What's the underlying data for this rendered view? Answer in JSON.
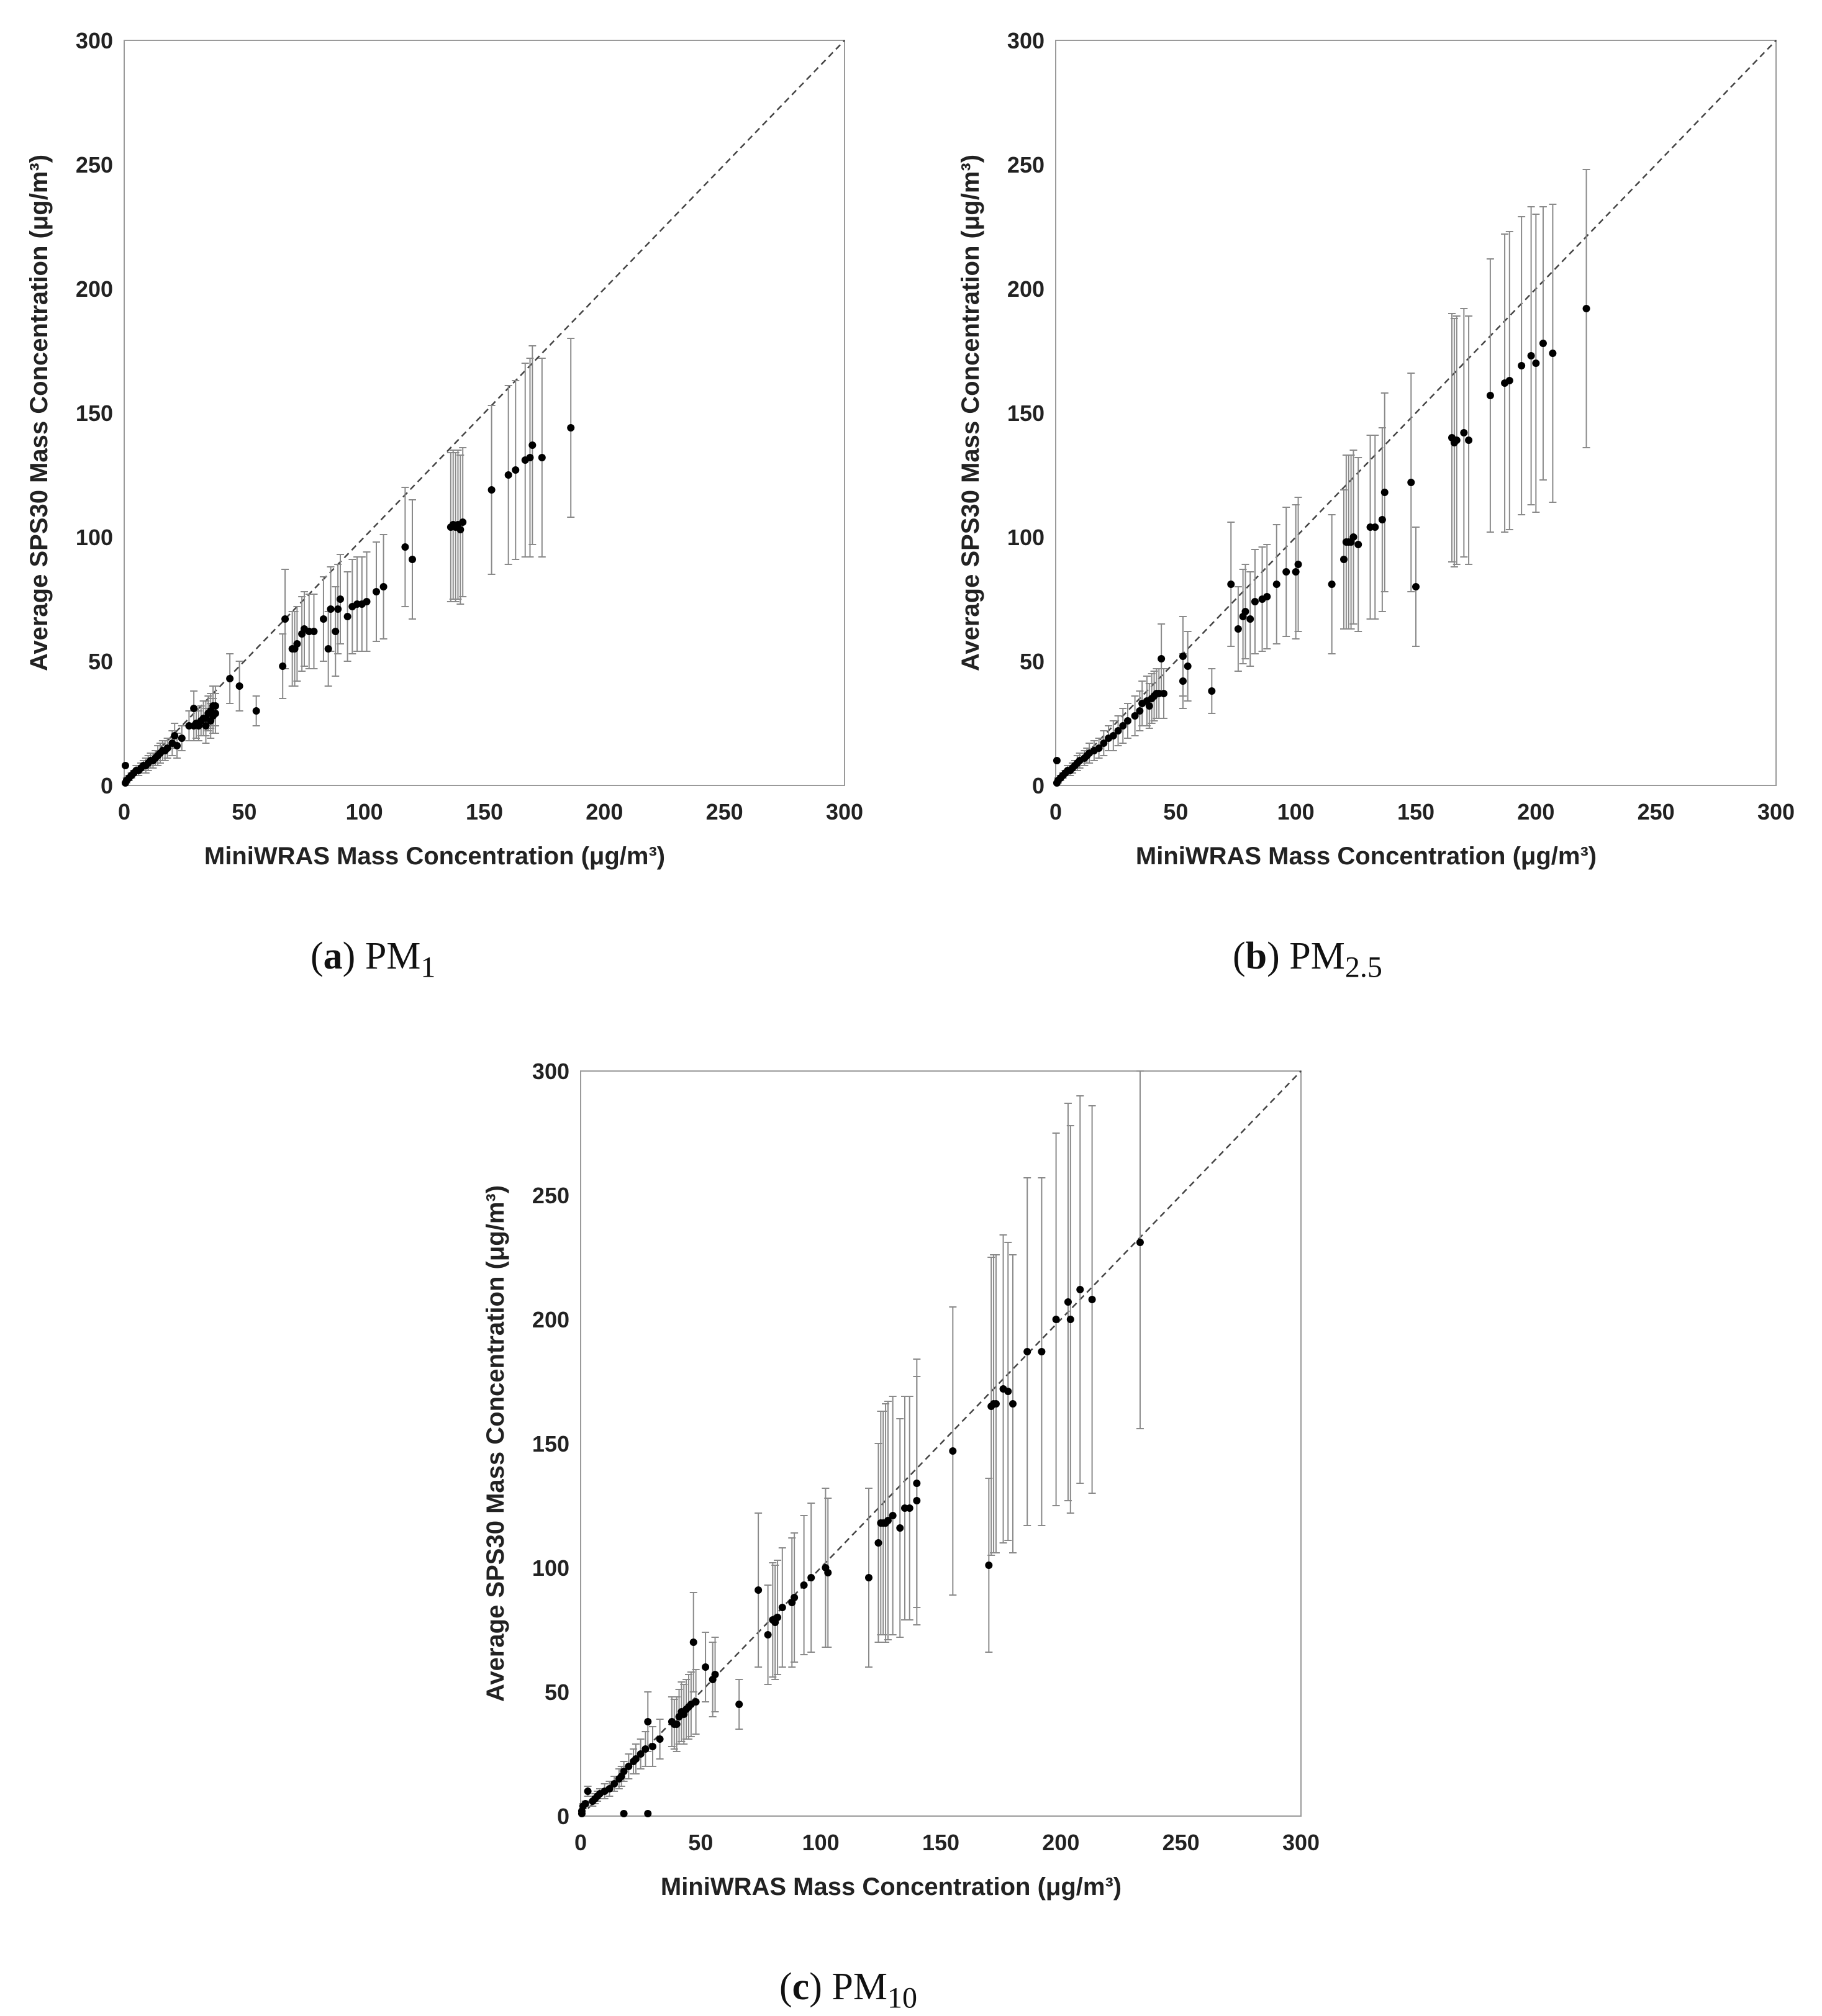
{
  "charts": [
    {
      "id": "a",
      "caption_letter": "a",
      "caption_text": "PM",
      "caption_sub": "1",
      "chart_data": {
        "type": "scatter",
        "title": "",
        "xlabel": "MiniWRAS Mass Concentration (μg/m³)",
        "ylabel": "Average SPS30 Mass Concentration (μg/m³)",
        "xlim": [
          0,
          300
        ],
        "ylim": [
          0,
          300
        ],
        "xticks": [
          "0",
          "50",
          "100",
          "150",
          "200",
          "250",
          "300"
        ],
        "yticks": [
          "0",
          "50",
          "100",
          "150",
          "200",
          "250",
          "300"
        ],
        "reference_line": "1:1 (dashed)",
        "points": [
          [
            0.5,
            1,
            0
          ],
          [
            0.5,
            8,
            0
          ],
          [
            1,
            2,
            1
          ],
          [
            2,
            3,
            1
          ],
          [
            3,
            4,
            1
          ],
          [
            4,
            5,
            1
          ],
          [
            5,
            6,
            2
          ],
          [
            6,
            6,
            2
          ],
          [
            7,
            7,
            2
          ],
          [
            8,
            8,
            2
          ],
          [
            9,
            8,
            3
          ],
          [
            10,
            9,
            3
          ],
          [
            11,
            10,
            3
          ],
          [
            12,
            10,
            3
          ],
          [
            13,
            11,
            3
          ],
          [
            14,
            12,
            4
          ],
          [
            15,
            13,
            4
          ],
          [
            16,
            14,
            4
          ],
          [
            17,
            14,
            4
          ],
          [
            18,
            15,
            4
          ],
          [
            20,
            17,
            5
          ],
          [
            21,
            20,
            5
          ],
          [
            22,
            16,
            5
          ],
          [
            24,
            19,
            5
          ],
          [
            27,
            24,
            6
          ],
          [
            29,
            24,
            6
          ],
          [
            29,
            31,
            7
          ],
          [
            30,
            25,
            6
          ],
          [
            31,
            24,
            6
          ],
          [
            32,
            26,
            6
          ],
          [
            33,
            27,
            7
          ],
          [
            34,
            27,
            7
          ],
          [
            34,
            24,
            7
          ],
          [
            35,
            29,
            7
          ],
          [
            36,
            26,
            7
          ],
          [
            36,
            30,
            7
          ],
          [
            37,
            28,
            7
          ],
          [
            37,
            32,
            8
          ],
          [
            38,
            29,
            8
          ],
          [
            38,
            32,
            8
          ],
          [
            44,
            43,
            10
          ],
          [
            48,
            40,
            10
          ],
          [
            55,
            30,
            6
          ],
          [
            66,
            48,
            13
          ],
          [
            67,
            67,
            20
          ],
          [
            70,
            55,
            15
          ],
          [
            71,
            55,
            15
          ],
          [
            72,
            57,
            15
          ],
          [
            74,
            61,
            15
          ],
          [
            75,
            63,
            15
          ],
          [
            77,
            62,
            15
          ],
          [
            79,
            62,
            15
          ],
          [
            83,
            67,
            17
          ],
          [
            85,
            55,
            15
          ],
          [
            86,
            71,
            17
          ],
          [
            88,
            62,
            18
          ],
          [
            89,
            71,
            18
          ],
          [
            90,
            75,
            18
          ],
          [
            93,
            68,
            18
          ],
          [
            95,
            72,
            19
          ],
          [
            97,
            73,
            19
          ],
          [
            99,
            73,
            19
          ],
          [
            101,
            74,
            20
          ],
          [
            105,
            78,
            20
          ],
          [
            108,
            80,
            21
          ],
          [
            117,
            96,
            24
          ],
          [
            120,
            91,
            24
          ],
          [
            136,
            104,
            30
          ],
          [
            137,
            105,
            30
          ],
          [
            138,
            104,
            30
          ],
          [
            139,
            105,
            30
          ],
          [
            140,
            103,
            30
          ],
          [
            141,
            106,
            30
          ],
          [
            153,
            119,
            34
          ],
          [
            160,
            125,
            36
          ],
          [
            163,
            127,
            36
          ],
          [
            167,
            131,
            39
          ],
          [
            169,
            132,
            40
          ],
          [
            170,
            137,
            40
          ],
          [
            174,
            132,
            40
          ],
          [
            186,
            144,
            36
          ]
        ]
      }
    },
    {
      "id": "b",
      "caption_letter": "b",
      "caption_text": "PM",
      "caption_sub": "2.5",
      "chart_data": {
        "type": "scatter",
        "title": "",
        "xlabel": "MiniWRAS Mass Concentration (μg/m³)",
        "ylabel": "Average SPS30 Mass Concentration (μg/m³)",
        "xlim": [
          0,
          300
        ],
        "ylim": [
          0,
          300
        ],
        "xticks": [
          "0",
          "50",
          "100",
          "150",
          "200",
          "250",
          "300"
        ],
        "yticks": [
          "0",
          "50",
          "100",
          "150",
          "200",
          "250",
          "300"
        ],
        "reference_line": "1:1 (dashed)",
        "points": [
          [
            0.5,
            1,
            0
          ],
          [
            0.5,
            10,
            0
          ],
          [
            1,
            2,
            1
          ],
          [
            2,
            3,
            1
          ],
          [
            3,
            4,
            1
          ],
          [
            4,
            5,
            1
          ],
          [
            5,
            6,
            2
          ],
          [
            6,
            6,
            2
          ],
          [
            7,
            7,
            2
          ],
          [
            8,
            8,
            2
          ],
          [
            9,
            9,
            3
          ],
          [
            10,
            10,
            3
          ],
          [
            12,
            11,
            3
          ],
          [
            13,
            12,
            3
          ],
          [
            14,
            13,
            4
          ],
          [
            16,
            14,
            4
          ],
          [
            18,
            15,
            4
          ],
          [
            20,
            17,
            5
          ],
          [
            22,
            19,
            5
          ],
          [
            24,
            20,
            6
          ],
          [
            26,
            22,
            6
          ],
          [
            28,
            24,
            7
          ],
          [
            30,
            26,
            7
          ],
          [
            33,
            28,
            8
          ],
          [
            35,
            30,
            8
          ],
          [
            36,
            33,
            9
          ],
          [
            38,
            34,
            10
          ],
          [
            39,
            32,
            9
          ],
          [
            40,
            35,
            10
          ],
          [
            41,
            36,
            10
          ],
          [
            42,
            37,
            10
          ],
          [
            43,
            37,
            10
          ],
          [
            44,
            51,
            14
          ],
          [
            45,
            37,
            10
          ],
          [
            53,
            42,
            11
          ],
          [
            53,
            52,
            16
          ],
          [
            55,
            48,
            14
          ],
          [
            65,
            38,
            9
          ],
          [
            73,
            81,
            25
          ],
          [
            76,
            63,
            17
          ],
          [
            78,
            68,
            19
          ],
          [
            79,
            70,
            19
          ],
          [
            81,
            67,
            19
          ],
          [
            83,
            74,
            21
          ],
          [
            86,
            75,
            21
          ],
          [
            88,
            76,
            21
          ],
          [
            92,
            81,
            24
          ],
          [
            96,
            86,
            26
          ],
          [
            100,
            86,
            27
          ],
          [
            101,
            89,
            27
          ],
          [
            115,
            81,
            28
          ],
          [
            120,
            91,
            28
          ],
          [
            121,
            98,
            35
          ],
          [
            122,
            98,
            35
          ],
          [
            123,
            98,
            35
          ],
          [
            124,
            100,
            35
          ],
          [
            126,
            97,
            35
          ],
          [
            131,
            104,
            37
          ],
          [
            133,
            104,
            37
          ],
          [
            136,
            107,
            37
          ],
          [
            137,
            118,
            40
          ],
          [
            148,
            122,
            44
          ],
          [
            150,
            80,
            24
          ],
          [
            165,
            140,
            50
          ],
          [
            166,
            138,
            50
          ],
          [
            167,
            139,
            50
          ],
          [
            170,
            142,
            50
          ],
          [
            172,
            139,
            50
          ],
          [
            181,
            157,
            55
          ],
          [
            187,
            162,
            60
          ],
          [
            189,
            163,
            60
          ],
          [
            194,
            169,
            60
          ],
          [
            198,
            173,
            60
          ],
          [
            200,
            170,
            60
          ],
          [
            203,
            178,
            55
          ],
          [
            207,
            174,
            60
          ],
          [
            221,
            192,
            56
          ]
        ]
      }
    },
    {
      "id": "c",
      "caption_letter": "c",
      "caption_text": "PM",
      "caption_sub": "10",
      "chart_data": {
        "type": "scatter",
        "title": "",
        "xlabel": "MiniWRAS Mass Concentration (μg/m³)",
        "ylabel": "Average SPS30 Mass Concentration (μg/m³)",
        "xlim": [
          0,
          300
        ],
        "ylim": [
          0,
          300
        ],
        "xticks": [
          "0",
          "50",
          "100",
          "150",
          "200",
          "250",
          "300"
        ],
        "yticks": [
          "0",
          "50",
          "100",
          "150",
          "200",
          "250",
          "300"
        ],
        "reference_line": "1:1 (dashed)",
        "points": [
          [
            0.5,
            1,
            0
          ],
          [
            0.5,
            2,
            0
          ],
          [
            1,
            4,
            1
          ],
          [
            2,
            5,
            1
          ],
          [
            3,
            10,
            2
          ],
          [
            5,
            6,
            2
          ],
          [
            6,
            7,
            2
          ],
          [
            7,
            8,
            2
          ],
          [
            8,
            9,
            2
          ],
          [
            10,
            10,
            3
          ],
          [
            12,
            11,
            3
          ],
          [
            14,
            13,
            3
          ],
          [
            16,
            15,
            4
          ],
          [
            17,
            16,
            4
          ],
          [
            18,
            18,
            4
          ],
          [
            20,
            20,
            5
          ],
          [
            22,
            22,
            5
          ],
          [
            23,
            23,
            6
          ],
          [
            25,
            25,
            6
          ],
          [
            27,
            27,
            7
          ],
          [
            28,
            38,
            12
          ],
          [
            30,
            28,
            8
          ],
          [
            33,
            31,
            8
          ],
          [
            38,
            38,
            10
          ],
          [
            39,
            37,
            10
          ],
          [
            40,
            37,
            11
          ],
          [
            41,
            40,
            11
          ],
          [
            42,
            42,
            12
          ],
          [
            43,
            41,
            12
          ],
          [
            44,
            43,
            12
          ],
          [
            45,
            44,
            13
          ],
          [
            46,
            45,
            13
          ],
          [
            47,
            70,
            20
          ],
          [
            48,
            46,
            13
          ],
          [
            52,
            60,
            14
          ],
          [
            55,
            55,
            15
          ],
          [
            56,
            57,
            15
          ],
          [
            66,
            45,
            10
          ],
          [
            18,
            1,
            0
          ],
          [
            28,
            1,
            0
          ],
          [
            74,
            91,
            31
          ],
          [
            78,
            73,
            20
          ],
          [
            80,
            79,
            23
          ],
          [
            81,
            78,
            23
          ],
          [
            82,
            80,
            23
          ],
          [
            84,
            84,
            24
          ],
          [
            88,
            86,
            26
          ],
          [
            89,
            88,
            26
          ],
          [
            93,
            93,
            28
          ],
          [
            96,
            96,
            30
          ],
          [
            102,
            100,
            32
          ],
          [
            103,
            98,
            30
          ],
          [
            120,
            96,
            36
          ],
          [
            124,
            110,
            40
          ],
          [
            125,
            118,
            45
          ],
          [
            126,
            118,
            45
          ],
          [
            127,
            118,
            48
          ],
          [
            128,
            119,
            48
          ],
          [
            130,
            121,
            48
          ],
          [
            133,
            116,
            44
          ],
          [
            135,
            124,
            45
          ],
          [
            137,
            124,
            45
          ],
          [
            140,
            127,
            50
          ],
          [
            140,
            134,
            50
          ],
          [
            155,
            147,
            58
          ],
          [
            170,
            101,
            35
          ],
          [
            171,
            165,
            60
          ],
          [
            172,
            166,
            60
          ],
          [
            173,
            166,
            60
          ],
          [
            176,
            172,
            62
          ],
          [
            178,
            171,
            60
          ],
          [
            180,
            166,
            60
          ],
          [
            186,
            187,
            70
          ],
          [
            192,
            187,
            70
          ],
          [
            198,
            200,
            75
          ],
          [
            203,
            207,
            80
          ],
          [
            204,
            200,
            78
          ],
          [
            208,
            212,
            78
          ],
          [
            213,
            208,
            78
          ],
          [
            233,
            231,
            75
          ]
        ]
      }
    }
  ]
}
